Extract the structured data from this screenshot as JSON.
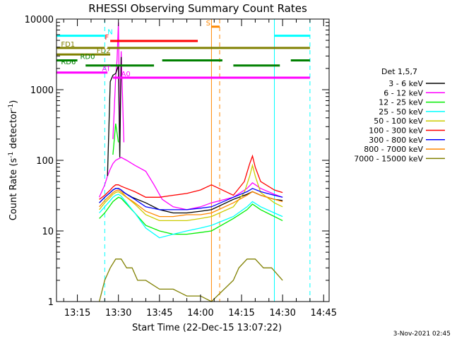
{
  "chart_data": {
    "type": "line",
    "title": "RHESSI Observing Summary Count Rates",
    "xlabel": "Start Time (22-Dec-15 13:07:22)",
    "ylabel": "Count Rate (s⁻¹ detector⁻¹)",
    "ylabel_main": "Count Rate (s",
    "ylabel_sup1": "-1",
    "ylabel_mid": " detector",
    "ylabel_sup2": "-1",
    "ylabel_end": ")",
    "yscale": "log",
    "ylim": [
      1,
      10000
    ],
    "xlim": [
      "13:07:22",
      "14:47"
    ],
    "x_ticks": [
      "13:15",
      "13:30",
      "13:45",
      "14:00",
      "14:15",
      "14:30",
      "14:45"
    ],
    "y_ticks": [
      "1",
      "10",
      "100",
      "1000",
      "10000"
    ],
    "legend_title": "Det 1,5,7",
    "legend_position": "right",
    "timestamp": "3-Nov-2021 02:45",
    "series": [
      {
        "name": "3 - 6 keV",
        "color": "#000000",
        "x": [
          "13:23",
          "13:25",
          "13:27",
          "13:28",
          "13:29",
          "13:30",
          "13:31",
          "13:32",
          "13:35",
          "13:40",
          "13:45",
          "13:50",
          "13:55",
          "14:00",
          "14:04",
          "14:12",
          "14:17",
          "14:19",
          "14:22",
          "14:27",
          "14:30"
        ],
        "values": [
          25,
          30,
          35,
          38,
          40,
          40,
          38,
          35,
          30,
          25,
          20,
          18,
          18,
          19,
          20,
          28,
          33,
          36,
          32,
          28,
          27
        ]
      },
      {
        "name": "6 - 12 keV",
        "color": "#ff00ff",
        "x": [
          "13:23",
          "13:25",
          "13:26",
          "13:27",
          "13:28",
          "13:29",
          "13:30",
          "13:31",
          "13:33",
          "13:36",
          "13:40",
          "13:43",
          "13:46",
          "13:50",
          "13:55",
          "14:00",
          "14:04",
          "14:12",
          "14:17",
          "14:19",
          "14:22",
          "14:27",
          "14:30"
        ],
        "values": [
          30,
          45,
          60,
          75,
          90,
          100,
          105,
          110,
          100,
          85,
          70,
          45,
          28,
          22,
          20,
          22,
          25,
          30,
          40,
          48,
          40,
          33,
          30
        ]
      },
      {
        "name": "12 - 25 keV",
        "color": "#00ee00",
        "x": [
          "13:23",
          "13:25",
          "13:27",
          "13:28",
          "13:29",
          "13:30",
          "13:31",
          "13:33",
          "13:36",
          "13:40",
          "13:45",
          "13:50",
          "13:55",
          "14:00",
          "14:04",
          "14:12",
          "14:17",
          "14:19",
          "14:22",
          "14:27",
          "14:30"
        ],
        "values": [
          15,
          18,
          23,
          26,
          28,
          30,
          29,
          24,
          18,
          12,
          10,
          9,
          9,
          9.5,
          10,
          15,
          20,
          24,
          20,
          16,
          14
        ]
      },
      {
        "name": "25 - 50 keV",
        "color": "#00ffff",
        "x": [
          "13:23",
          "13:25",
          "13:27",
          "13:28",
          "13:29",
          "13:30",
          "13:31",
          "13:33",
          "13:36",
          "13:40",
          "13:45",
          "13:50",
          "13:55",
          "14:00",
          "14:04",
          "14:12",
          "14:17",
          "14:19",
          "14:22",
          "14:27",
          "14:30"
        ],
        "values": [
          18,
          22,
          27,
          30,
          32,
          33,
          31,
          25,
          18,
          11,
          8,
          9,
          10,
          11,
          12,
          16,
          22,
          26,
          22,
          18,
          16
        ]
      },
      {
        "name": "50 - 100 keV",
        "color": "#cccc00",
        "x": [
          "13:23",
          "13:25",
          "13:27",
          "13:28",
          "13:29",
          "13:30",
          "13:31",
          "13:33",
          "13:36",
          "13:40",
          "13:45",
          "13:50",
          "13:55",
          "14:00",
          "14:04",
          "14:12",
          "14:16",
          "14:18",
          "14:19",
          "14:20",
          "14:22",
          "14:27",
          "14:30"
        ],
        "values": [
          20,
          25,
          30,
          33,
          35,
          36,
          34,
          30,
          24,
          17,
          14,
          14,
          14,
          15,
          16,
          22,
          35,
          60,
          85,
          60,
          35,
          25,
          22
        ]
      },
      {
        "name": "100 - 300 keV",
        "color": "#ff0000",
        "x": [
          "13:23",
          "13:25",
          "13:27",
          "13:28",
          "13:29",
          "13:30",
          "13:31",
          "13:33",
          "13:36",
          "13:40",
          "13:45",
          "13:50",
          "13:55",
          "14:00",
          "14:04",
          "14:12",
          "14:16",
          "14:18",
          "14:19",
          "14:20",
          "14:22",
          "14:27",
          "14:30"
        ],
        "values": [
          28,
          32,
          38,
          42,
          45,
          45,
          43,
          40,
          36,
          30,
          30,
          32,
          34,
          38,
          45,
          32,
          50,
          90,
          115,
          80,
          50,
          38,
          35
        ]
      },
      {
        "name": "300 - 800 keV",
        "color": "#0000ff",
        "x": [
          "13:23",
          "13:25",
          "13:27",
          "13:28",
          "13:29",
          "13:30",
          "13:31",
          "13:33",
          "13:36",
          "13:40",
          "13:45",
          "13:50",
          "13:55",
          "14:00",
          "14:04",
          "14:12",
          "14:17",
          "14:19",
          "14:22",
          "14:27",
          "14:30"
        ],
        "values": [
          25,
          30,
          35,
          38,
          40,
          40,
          38,
          33,
          28,
          22,
          20,
          20,
          20,
          21,
          22,
          30,
          36,
          40,
          36,
          32,
          30
        ]
      },
      {
        "name": "800 - 7000 keV",
        "color": "#ff8800",
        "x": [
          "13:23",
          "13:25",
          "13:27",
          "13:28",
          "13:29",
          "13:30",
          "13:31",
          "13:33",
          "13:36",
          "13:40",
          "13:45",
          "13:50",
          "13:55",
          "14:00",
          "14:04",
          "14:12",
          "14:17",
          "14:19",
          "14:22",
          "14:27",
          "14:30"
        ],
        "values": [
          22,
          27,
          32,
          35,
          37,
          38,
          36,
          30,
          25,
          19,
          16,
          16,
          17,
          17,
          18,
          25,
          32,
          36,
          32,
          28,
          26
        ]
      },
      {
        "name": "7000 - 15000 keV",
        "color": "#808000",
        "x": [
          "13:23",
          "13:25",
          "13:27",
          "13:29",
          "13:31",
          "13:33",
          "13:35",
          "13:37",
          "13:40",
          "13:45",
          "13:50",
          "13:55",
          "14:00",
          "14:04",
          "14:12",
          "14:14",
          "14:17",
          "14:20",
          "14:23",
          "14:26",
          "14:30"
        ],
        "values": [
          1,
          2,
          3,
          4,
          4,
          3,
          3,
          2,
          2,
          1.5,
          1.5,
          1.2,
          1.2,
          1,
          2,
          3,
          4,
          4,
          3,
          3,
          2
        ]
      }
    ],
    "spike_lines": [
      {
        "color": "#ff00ff",
        "x": [
          "13:28",
          "13:29",
          "13:29.5",
          "13:30",
          "13:30.5",
          "13:31",
          "13:32"
        ],
        "values": [
          200,
          1500,
          2600,
          9000,
          200,
          3500,
          180
        ]
      },
      {
        "color": "#000000",
        "x": [
          "13:26",
          "13:27",
          "13:28",
          "13:29",
          "13:30",
          "13:30.5",
          "13:31"
        ],
        "values": [
          60,
          1300,
          1600,
          1700,
          2200,
          110,
          2900
        ]
      },
      {
        "color": "#00ee00",
        "x": [
          "13:28",
          "13:29",
          "13:30"
        ],
        "values": [
          120,
          330,
          180
        ]
      }
    ],
    "flags": [
      {
        "label": "N",
        "color": "#00ffff",
        "y": 5800,
        "segments": [
          [
            "13:07:22",
            "13:25"
          ],
          [
            "14:27",
            "14:40"
          ]
        ],
        "label_x": "13:26"
      },
      {
        "label": "F",
        "color": "#ff0000",
        "y": 4900,
        "segments": [
          [
            "13:27",
            "13:59"
          ]
        ],
        "label_x": "13:25"
      },
      {
        "label": "S",
        "color": "#ff8800",
        "y": 7800,
        "segments": [
          [
            "14:04",
            "14:07"
          ]
        ],
        "label_x": "14:02"
      },
      {
        "label": "FD1",
        "color": "#808000",
        "y": 3900,
        "segments": [
          [
            "13:07:22",
            "13:25"
          ],
          [
            "13:26",
            "14:40"
          ]
        ],
        "label_x": "13:09"
      },
      {
        "label": "FD2",
        "color": "#808000",
        "y": 3150,
        "segments": [
          [
            "13:07:22",
            "13:27"
          ]
        ],
        "label_x": "13:22"
      },
      {
        "label": "RD0",
        "color": "#008000",
        "y": 2600,
        "segments": [
          [
            "13:07:22",
            "13:15"
          ],
          [
            "13:46",
            "14:08"
          ],
          [
            "14:33",
            "14:40"
          ]
        ],
        "label_x": "13:16"
      },
      {
        "label": "RD6",
        "color": "#008000",
        "y": 2200,
        "segments": [
          [
            "13:18",
            "13:43"
          ],
          [
            "14:12",
            "14:29"
          ]
        ],
        "label_x": "13:09"
      },
      {
        "label": "AT",
        "color": "#ff00ff",
        "y": 1750,
        "segments": [
          [
            "13:07:22",
            "13:26"
          ]
        ],
        "label_x": "13:24"
      },
      {
        "label": "A0",
        "color": "#ff00ff",
        "y": 1480,
        "segments": [
          [
            "13:28",
            "14:40"
          ]
        ],
        "label_x": "13:31"
      }
    ],
    "vlines": [
      {
        "x": "13:07:22",
        "color": "#00ffff",
        "style": "solid"
      },
      {
        "x": "13:25",
        "color": "#00ffff",
        "style": "dashed"
      },
      {
        "x": "14:04",
        "color": "#ff8800",
        "style": "solid"
      },
      {
        "x": "14:07",
        "color": "#ff8800",
        "style": "dashed"
      },
      {
        "x": "14:27",
        "color": "#00ffff",
        "style": "solid"
      },
      {
        "x": "14:40",
        "color": "#00ffff",
        "style": "dashed"
      }
    ]
  }
}
